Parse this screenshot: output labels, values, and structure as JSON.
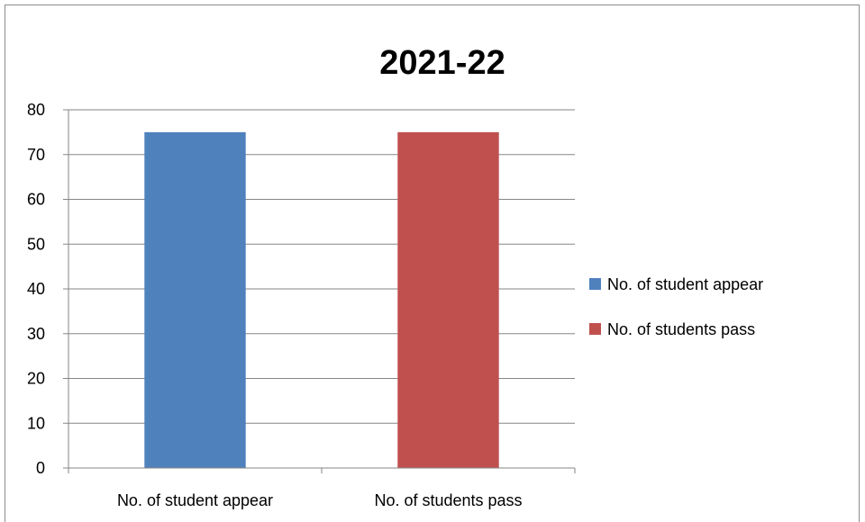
{
  "chart_data": {
    "type": "bar",
    "title": "2021-22",
    "categories": [
      "No. of student appear",
      "No. of students pass"
    ],
    "values": [
      75,
      75
    ],
    "colors": [
      "#4f81bd",
      "#c0504d"
    ],
    "yticks": [
      "0",
      "10",
      "20",
      "30",
      "40",
      "50",
      "60",
      "70",
      "80"
    ],
    "ylim": [
      0,
      80
    ],
    "grid": true,
    "legend_position": "right",
    "legend": [
      {
        "label": "No. of student appear",
        "color": "#4f81bd"
      },
      {
        "label": "No. of students pass",
        "color": "#c0504d"
      }
    ],
    "xlabel": "",
    "ylabel": ""
  }
}
